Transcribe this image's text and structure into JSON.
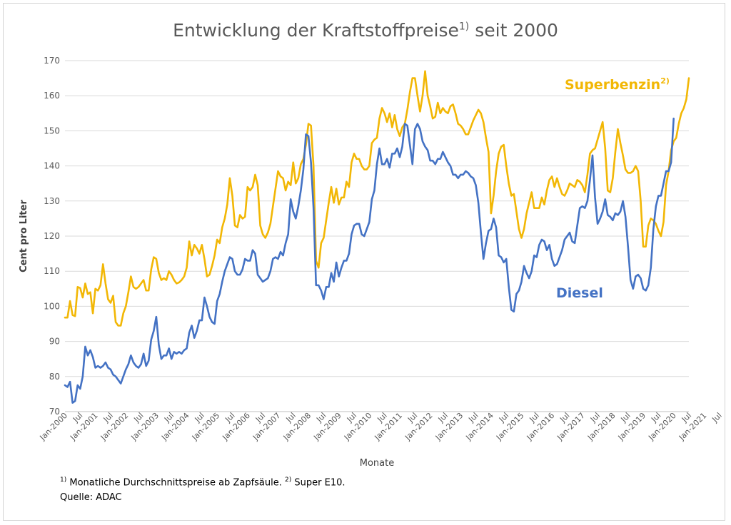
{
  "chart_data": {
    "type": "line",
    "title": "Entwicklung der Kraftstoffpreise",
    "title_sup": "1)",
    "title_suffix": " seit 2000",
    "xlabel": "Monate",
    "ylabel": "Cent pro Liter",
    "ylim": [
      70,
      170
    ],
    "yticks": [
      70,
      80,
      90,
      100,
      110,
      120,
      130,
      140,
      150,
      160,
      170
    ],
    "grid": true,
    "xtick_labels": [
      "Jan-2000",
      "Jul",
      "Jan-2001",
      "Jul",
      "Jan-2002",
      "Jul",
      "Jan-2003",
      "Jul",
      "Jan-2004",
      "Jul",
      "Jan-2005",
      "Jul",
      "Jan-2006",
      "Jul",
      "Jan-2007",
      "Jul",
      "Jan-2008",
      "Jul",
      "Jan-2009",
      "Jul",
      "Jan-2010",
      "Jul",
      "Jan-2011",
      "Jul",
      "Jan-2012",
      "Jul",
      "Jan-2013",
      "Jul",
      "Jan-2014",
      "Jul",
      "Jan-2015",
      "Jul",
      "Jan-2016",
      "Jul",
      "Jan-2017",
      "Jul",
      "Jan-2018",
      "Jul",
      "Jan-2019",
      "Jul",
      "Jan-2020",
      "Jul",
      "Jan-2021",
      "Jul"
    ],
    "x_start": "Jan-2000",
    "series": [
      {
        "name": "Superbenzin",
        "name_sup": "2)",
        "color": "#F2B705",
        "values": [
          96.8,
          96.8,
          101.5,
          97.5,
          97.2,
          105.5,
          105.2,
          102.5,
          106.5,
          103.5,
          104.0,
          98.0,
          105.0,
          104.5,
          106.0,
          112.0,
          106.5,
          102.0,
          101.0,
          103.0,
          95.5,
          94.5,
          94.5,
          98.0,
          100.0,
          104.0,
          108.5,
          105.5,
          105.0,
          105.5,
          106.5,
          107.5,
          104.5,
          104.5,
          110.5,
          114.0,
          113.5,
          109.5,
          107.5,
          108.0,
          107.5,
          110.0,
          109.0,
          107.5,
          106.5,
          106.8,
          107.5,
          108.5,
          111.0,
          118.5,
          114.5,
          117.5,
          116.5,
          115.0,
          117.5,
          113.5,
          108.5,
          109.0,
          111.5,
          114.5,
          119.0,
          118.0,
          122.5,
          125.0,
          129.0,
          136.5,
          131.5,
          123.0,
          122.5,
          126.0,
          125.0,
          125.5,
          134.0,
          133.0,
          134.0,
          137.5,
          134.5,
          123.0,
          120.5,
          119.5,
          121.0,
          123.5,
          128.5,
          133.5,
          138.5,
          137.0,
          136.5,
          133.0,
          135.5,
          134.5,
          141.0,
          135.0,
          136.5,
          140.5,
          142.0,
          146.0,
          152.0,
          151.5,
          140.0,
          113.0,
          111.0,
          118.0,
          119.5,
          124.5,
          129.5,
          134.0,
          129.5,
          133.5,
          129.0,
          131.0,
          131.0,
          135.5,
          134.0,
          141.0,
          143.5,
          142.0,
          142.0,
          140.0,
          139.0,
          139.0,
          140.0,
          146.5,
          147.5,
          148.0,
          153.5,
          156.5,
          155.0,
          152.5,
          155.0,
          151.0,
          154.5,
          150.5,
          148.5,
          151.0,
          152.0,
          156.0,
          161.0,
          165.0,
          165.0,
          160.0,
          155.5,
          160.0,
          167.0,
          160.0,
          157.0,
          153.5,
          154.0,
          158.0,
          155.0,
          156.5,
          155.5,
          155.0,
          157.0,
          157.5,
          155.0,
          152.0,
          151.5,
          150.5,
          149.0,
          149.0,
          151.0,
          153.0,
          154.5,
          156.0,
          155.0,
          152.5,
          148.0,
          144.0,
          126.5,
          131.5,
          138.5,
          143.5,
          145.5,
          146.0,
          140.0,
          135.0,
          131.5,
          132.0,
          127.0,
          122.0,
          119.5,
          122.0,
          126.5,
          129.5,
          132.5,
          128.0,
          128.0,
          128.0,
          131.0,
          129.0,
          133.0,
          136.0,
          137.0,
          134.0,
          136.5,
          134.0,
          132.0,
          131.5,
          133.0,
          135.0,
          134.5,
          134.0,
          136.0,
          135.5,
          134.5,
          132.5,
          137.5,
          143.5,
          144.5,
          145.0,
          147.5,
          150.0,
          152.5,
          145.0,
          133.0,
          132.5,
          136.5,
          144.0,
          150.5,
          146.5,
          143.0,
          139.0,
          138.0,
          138.0,
          138.5,
          140.0,
          138.5,
          130.0,
          117.0,
          117.0,
          123.0,
          125.0,
          124.5,
          123.5,
          121.5,
          120.0,
          124.0,
          134.5,
          138.5,
          144.5,
          147.0,
          148.0,
          152.0,
          155.0,
          156.5,
          159.0,
          165.0
        ]
      },
      {
        "name": "Diesel",
        "color": "#4472C4",
        "values": [
          77.5,
          77.0,
          78.5,
          72.5,
          73.0,
          77.5,
          76.5,
          80.0,
          88.5,
          86.0,
          87.5,
          85.5,
          82.5,
          83.0,
          82.5,
          83.0,
          84.0,
          82.5,
          82.0,
          80.5,
          80.0,
          79.0,
          78.0,
          80.0,
          82.0,
          83.5,
          86.0,
          84.0,
          83.0,
          82.5,
          83.5,
          86.5,
          83.0,
          84.5,
          90.5,
          93.0,
          97.0,
          89.0,
          85.0,
          86.0,
          86.0,
          88.0,
          85.0,
          87.0,
          86.5,
          87.0,
          86.5,
          87.5,
          88.0,
          92.5,
          94.5,
          91.0,
          93.0,
          96.0,
          96.0,
          102.5,
          100.0,
          97.0,
          95.5,
          95.0,
          101.5,
          103.5,
          107.0,
          110.0,
          112.0,
          114.0,
          113.5,
          110.0,
          109.0,
          109.0,
          110.5,
          113.5,
          113.0,
          113.0,
          116.0,
          115.0,
          109.0,
          108.0,
          107.0,
          107.5,
          108.0,
          110.0,
          113.5,
          114.0,
          113.5,
          115.5,
          114.5,
          118.0,
          120.5,
          130.5,
          127.0,
          125.0,
          128.5,
          133.0,
          139.0,
          149.0,
          148.5,
          141.0,
          128.0,
          106.0,
          106.0,
          104.5,
          102.0,
          105.5,
          105.5,
          109.5,
          107.0,
          112.5,
          108.5,
          111.0,
          113.0,
          113.0,
          115.0,
          120.5,
          123.0,
          123.5,
          123.5,
          120.5,
          120.0,
          122.0,
          124.0,
          130.5,
          133.0,
          140.5,
          145.0,
          140.5,
          140.5,
          142.0,
          139.5,
          143.5,
          143.5,
          145.0,
          142.5,
          145.5,
          152.0,
          151.5,
          146.0,
          140.5,
          150.5,
          152.0,
          150.5,
          147.0,
          145.5,
          144.5,
          141.5,
          141.5,
          140.5,
          142.0,
          142.0,
          144.0,
          142.5,
          141.0,
          140.0,
          137.5,
          137.5,
          136.5,
          137.5,
          137.5,
          138.5,
          138.0,
          137.0,
          136.5,
          134.5,
          129.5,
          121.0,
          113.5,
          118.0,
          121.5,
          122.0,
          125.0,
          122.5,
          114.5,
          114.0,
          112.5,
          113.5,
          105.5,
          99.0,
          98.5,
          103.5,
          104.5,
          107.0,
          111.5,
          109.5,
          108.0,
          110.0,
          114.5,
          114.0,
          117.5,
          119.0,
          118.5,
          116.0,
          117.5,
          113.5,
          111.5,
          112.0,
          114.0,
          116.0,
          119.0,
          120.0,
          121.0,
          118.5,
          118.0,
          123.0,
          128.0,
          128.5,
          128.0,
          130.0,
          136.0,
          143.0,
          131.0,
          123.5,
          125.0,
          127.0,
          130.5,
          126.0,
          125.5,
          124.5,
          126.5,
          126.0,
          127.0,
          130.0,
          125.5,
          117.0,
          107.5,
          105.0,
          108.5,
          109.0,
          108.0,
          105.0,
          104.5,
          106.0,
          111.0,
          122.0,
          128.5,
          131.5,
          131.5,
          135.0,
          138.5,
          138.5,
          141.0,
          153.5
        ]
      }
    ]
  },
  "footnote": {
    "line1_sup_a": "1)",
    "line1_text_a": " Monatliche Durchschnittspreise ab Zapfsäule. ",
    "line1_sup_b": "2)",
    "line1_text_b": " Super E10.",
    "line2": "Quelle: ADAC"
  }
}
